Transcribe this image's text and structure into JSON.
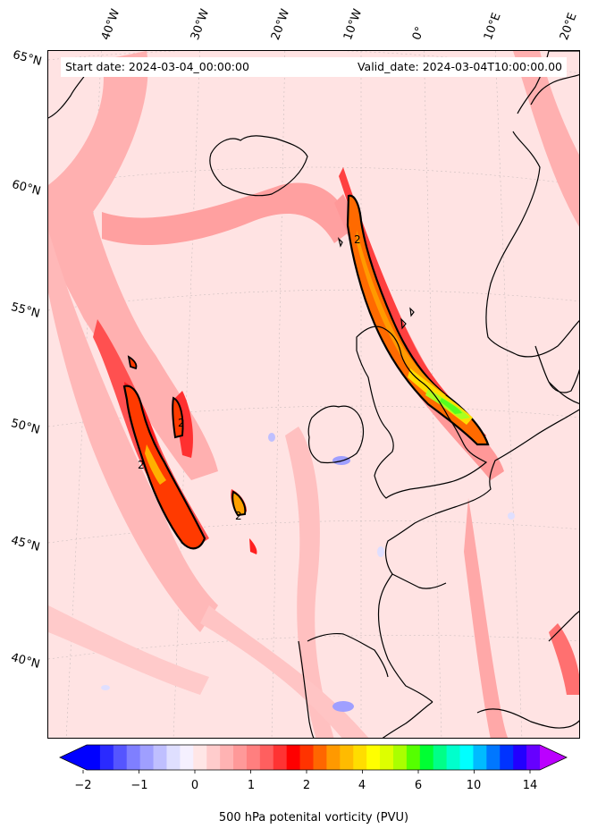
{
  "header": {
    "start_date": "Start date: 2024-03-04_00:00:00",
    "valid_date": "Valid_date: 2024-03-04T10:00:00.00"
  },
  "lon_labels": [
    "40°W",
    "30°W",
    "20°W",
    "10°W",
    "0°",
    "10°E",
    "20°E"
  ],
  "lat_labels": [
    "65°N",
    "60°N",
    "55°N",
    "50°N",
    "45°N",
    "40°N"
  ],
  "contour_labels": [
    "2",
    "2",
    "2",
    "2"
  ],
  "colorbar": {
    "label": "500 hPa potenital vorticity (PVU)",
    "ticks": [
      "−2",
      "−1",
      "0",
      "1",
      "2",
      "4",
      "6",
      "10",
      "14"
    ],
    "colors": [
      "#0000ff",
      "#2a2aff",
      "#5555ff",
      "#7f7fff",
      "#9f9fff",
      "#bfbfff",
      "#dfdfff",
      "#f5f0ff",
      "#ffe6e6",
      "#ffcccc",
      "#ffb3b3",
      "#ff9999",
      "#ff7f7f",
      "#ff5f5f",
      "#ff3333",
      "#ff0000",
      "#ff3300",
      "#ff6600",
      "#ff9900",
      "#ffbb00",
      "#ffdd00",
      "#ffff00",
      "#ddff00",
      "#aaff00",
      "#55ff00",
      "#00ff33",
      "#00ff88",
      "#00ffcc",
      "#00ffff",
      "#00bbff",
      "#0077ff",
      "#0033ff",
      "#2200ff",
      "#6600ff"
    ],
    "under_color": "#0000ff",
    "over_color": "#bb00ff"
  }
}
